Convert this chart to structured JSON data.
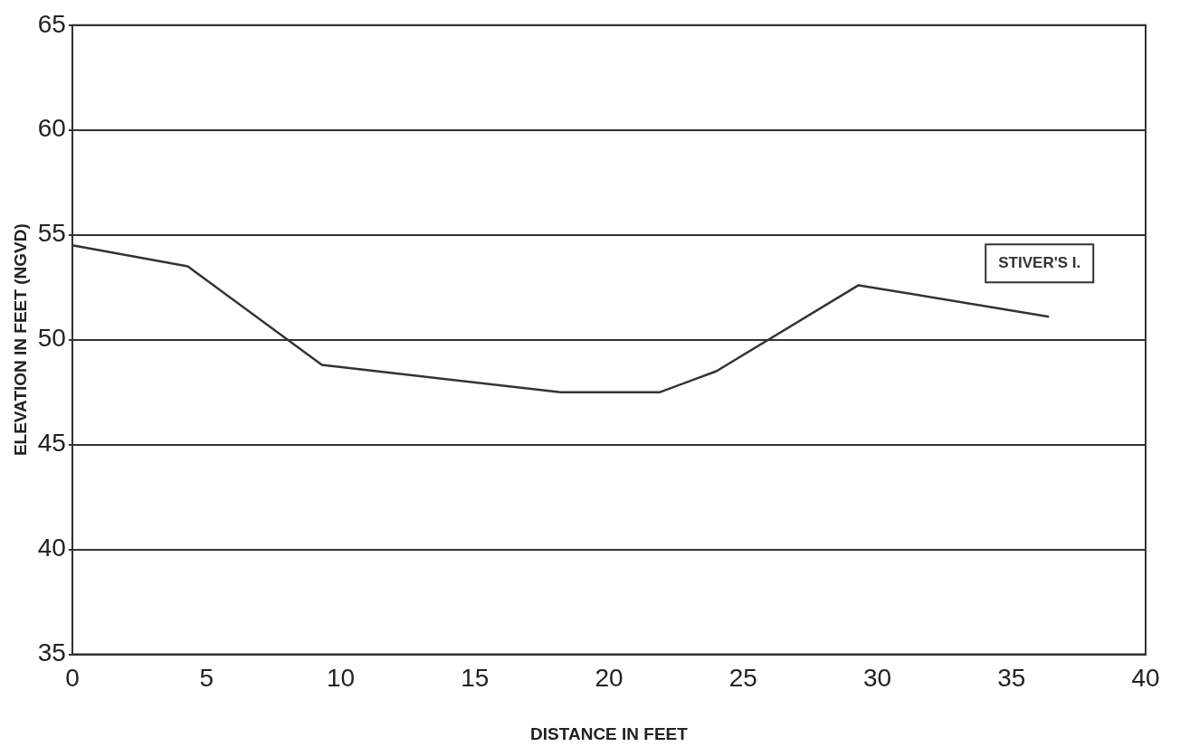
{
  "chart_data": {
    "type": "line",
    "xlabel": "DISTANCE IN FEET",
    "ylabel": "ELEVATION IN FEET (NGVD)",
    "series": [
      {
        "name": "STIVER'S I.",
        "color": "#333333",
        "x": [
          0,
          4.3,
          9.3,
          18.2,
          21.9,
          24,
          29.3,
          36.4
        ],
        "values": [
          54.5,
          53.5,
          48.8,
          47.5,
          47.5,
          48.5,
          52.6,
          51.1
        ]
      }
    ],
    "xlim": [
      0,
      40
    ],
    "xticks": [
      0,
      5,
      10,
      15,
      20,
      25,
      30,
      35,
      40
    ],
    "ylim": [
      35,
      65
    ],
    "yticks": [
      35,
      40,
      45,
      50,
      55,
      60,
      65
    ],
    "grid": "y",
    "legend": false,
    "marker": "none",
    "line_style": "solid"
  }
}
